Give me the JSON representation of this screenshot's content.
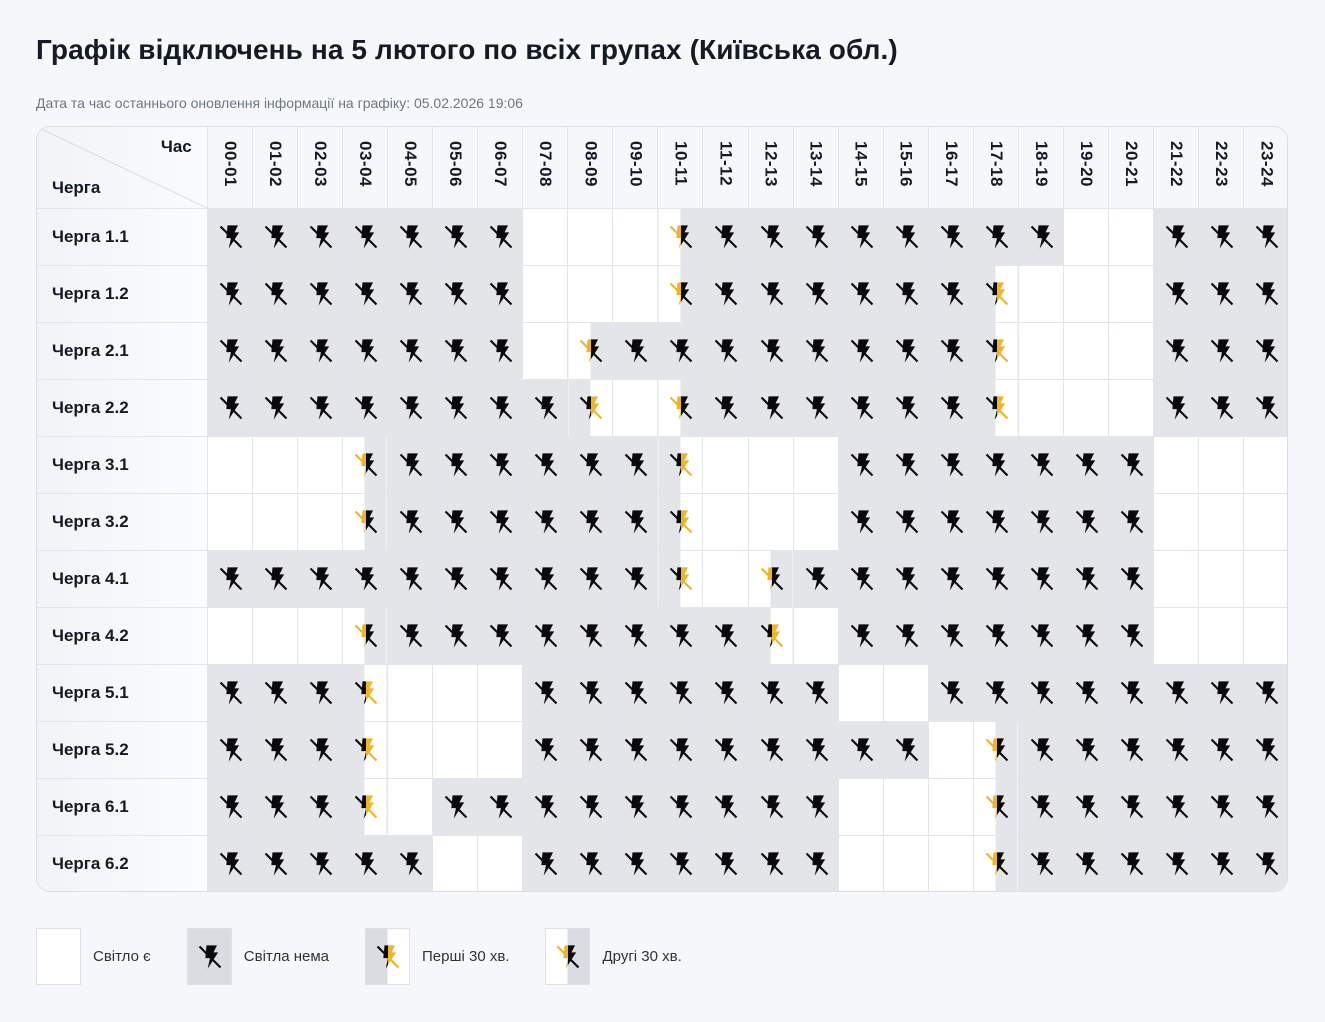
{
  "header": {
    "title": "Графік відключень на 5 лютого по всіх групах (Київська обл.)",
    "updated": "Дата та час останнього оновлення інформації на графіку: 05.02.2026 19:06"
  },
  "table": {
    "corner_hour_label": "Час",
    "corner_queue_label": "Черга",
    "hours": [
      "00-01",
      "01-02",
      "02-03",
      "03-04",
      "04-05",
      "05-06",
      "06-07",
      "07-08",
      "08-09",
      "09-10",
      "10-11",
      "11-12",
      "12-13",
      "13-14",
      "14-15",
      "15-16",
      "16-17",
      "17-18",
      "18-19",
      "19-20",
      "20-21",
      "21-22",
      "22-23",
      "23-24"
    ],
    "state_legend": {
      "y": "power on",
      "n": "no power",
      "f": "first 30 min off",
      "s": "second 30 min off"
    },
    "rows": [
      {
        "label": "Черга 1.1",
        "cells": [
          "n",
          "n",
          "n",
          "n",
          "n",
          "n",
          "n",
          "y",
          "y",
          "y",
          "s",
          "n",
          "n",
          "n",
          "n",
          "n",
          "n",
          "n",
          "n",
          "y",
          "y",
          "n",
          "n",
          "n"
        ]
      },
      {
        "label": "Черга 1.2",
        "cells": [
          "n",
          "n",
          "n",
          "n",
          "n",
          "n",
          "n",
          "y",
          "y",
          "y",
          "s",
          "n",
          "n",
          "n",
          "n",
          "n",
          "n",
          "f",
          "y",
          "y",
          "y",
          "n",
          "n",
          "n"
        ]
      },
      {
        "label": "Черга 2.1",
        "cells": [
          "n",
          "n",
          "n",
          "n",
          "n",
          "n",
          "n",
          "y",
          "s",
          "n",
          "n",
          "n",
          "n",
          "n",
          "n",
          "n",
          "n",
          "f",
          "y",
          "y",
          "y",
          "n",
          "n",
          "n"
        ]
      },
      {
        "label": "Черга 2.2",
        "cells": [
          "n",
          "n",
          "n",
          "n",
          "n",
          "n",
          "n",
          "n",
          "f",
          "y",
          "s",
          "n",
          "n",
          "n",
          "n",
          "n",
          "n",
          "f",
          "y",
          "y",
          "y",
          "n",
          "n",
          "n"
        ]
      },
      {
        "label": "Черга 3.1",
        "cells": [
          "y",
          "y",
          "y",
          "s",
          "n",
          "n",
          "n",
          "n",
          "n",
          "n",
          "f",
          "y",
          "y",
          "y",
          "n",
          "n",
          "n",
          "n",
          "n",
          "n",
          "n",
          "y",
          "y",
          "y"
        ]
      },
      {
        "label": "Черга 3.2",
        "cells": [
          "y",
          "y",
          "y",
          "s",
          "n",
          "n",
          "n",
          "n",
          "n",
          "n",
          "f",
          "y",
          "y",
          "y",
          "n",
          "n",
          "n",
          "n",
          "n",
          "n",
          "n",
          "y",
          "y",
          "y"
        ]
      },
      {
        "label": "Черга 4.1",
        "cells": [
          "n",
          "n",
          "n",
          "n",
          "n",
          "n",
          "n",
          "n",
          "n",
          "n",
          "f",
          "y",
          "s",
          "n",
          "n",
          "n",
          "n",
          "n",
          "n",
          "n",
          "n",
          "y",
          "y",
          "y"
        ]
      },
      {
        "label": "Черга 4.2",
        "cells": [
          "y",
          "y",
          "y",
          "s",
          "n",
          "n",
          "n",
          "n",
          "n",
          "n",
          "n",
          "n",
          "f",
          "y",
          "n",
          "n",
          "n",
          "n",
          "n",
          "n",
          "n",
          "y",
          "y",
          "y"
        ]
      },
      {
        "label": "Черга 5.1",
        "cells": [
          "n",
          "n",
          "n",
          "f",
          "y",
          "y",
          "y",
          "n",
          "n",
          "n",
          "n",
          "n",
          "n",
          "n",
          "y",
          "y",
          "n",
          "n",
          "n",
          "n",
          "n",
          "n",
          "n",
          "n"
        ]
      },
      {
        "label": "Черга 5.2",
        "cells": [
          "n",
          "n",
          "n",
          "f",
          "y",
          "y",
          "y",
          "n",
          "n",
          "n",
          "n",
          "n",
          "n",
          "n",
          "n",
          "n",
          "y",
          "s",
          "n",
          "n",
          "n",
          "n",
          "n",
          "n"
        ]
      },
      {
        "label": "Черга 6.1",
        "cells": [
          "n",
          "n",
          "n",
          "f",
          "y",
          "n",
          "n",
          "n",
          "n",
          "n",
          "n",
          "n",
          "n",
          "n",
          "y",
          "y",
          "y",
          "s",
          "n",
          "n",
          "n",
          "n",
          "n",
          "n"
        ]
      },
      {
        "label": "Черга 6.2",
        "cells": [
          "n",
          "n",
          "n",
          "n",
          "n",
          "y",
          "y",
          "n",
          "n",
          "n",
          "n",
          "n",
          "n",
          "n",
          "y",
          "y",
          "y",
          "s",
          "n",
          "n",
          "n",
          "n",
          "n",
          "n"
        ]
      }
    ]
  },
  "legend": [
    {
      "state": "y",
      "label": "Світло є"
    },
    {
      "state": "n",
      "label": "Світла нема"
    },
    {
      "state": "f",
      "label": "Перші 30 хв."
    },
    {
      "state": "s",
      "label": "Другі 30 хв."
    }
  ],
  "colors": {
    "no_power_bg": "#e3e5e9",
    "icon_black": "#0a0a0a",
    "icon_yellow": "#f0b428",
    "page_bg": "#f6f7fa"
  }
}
